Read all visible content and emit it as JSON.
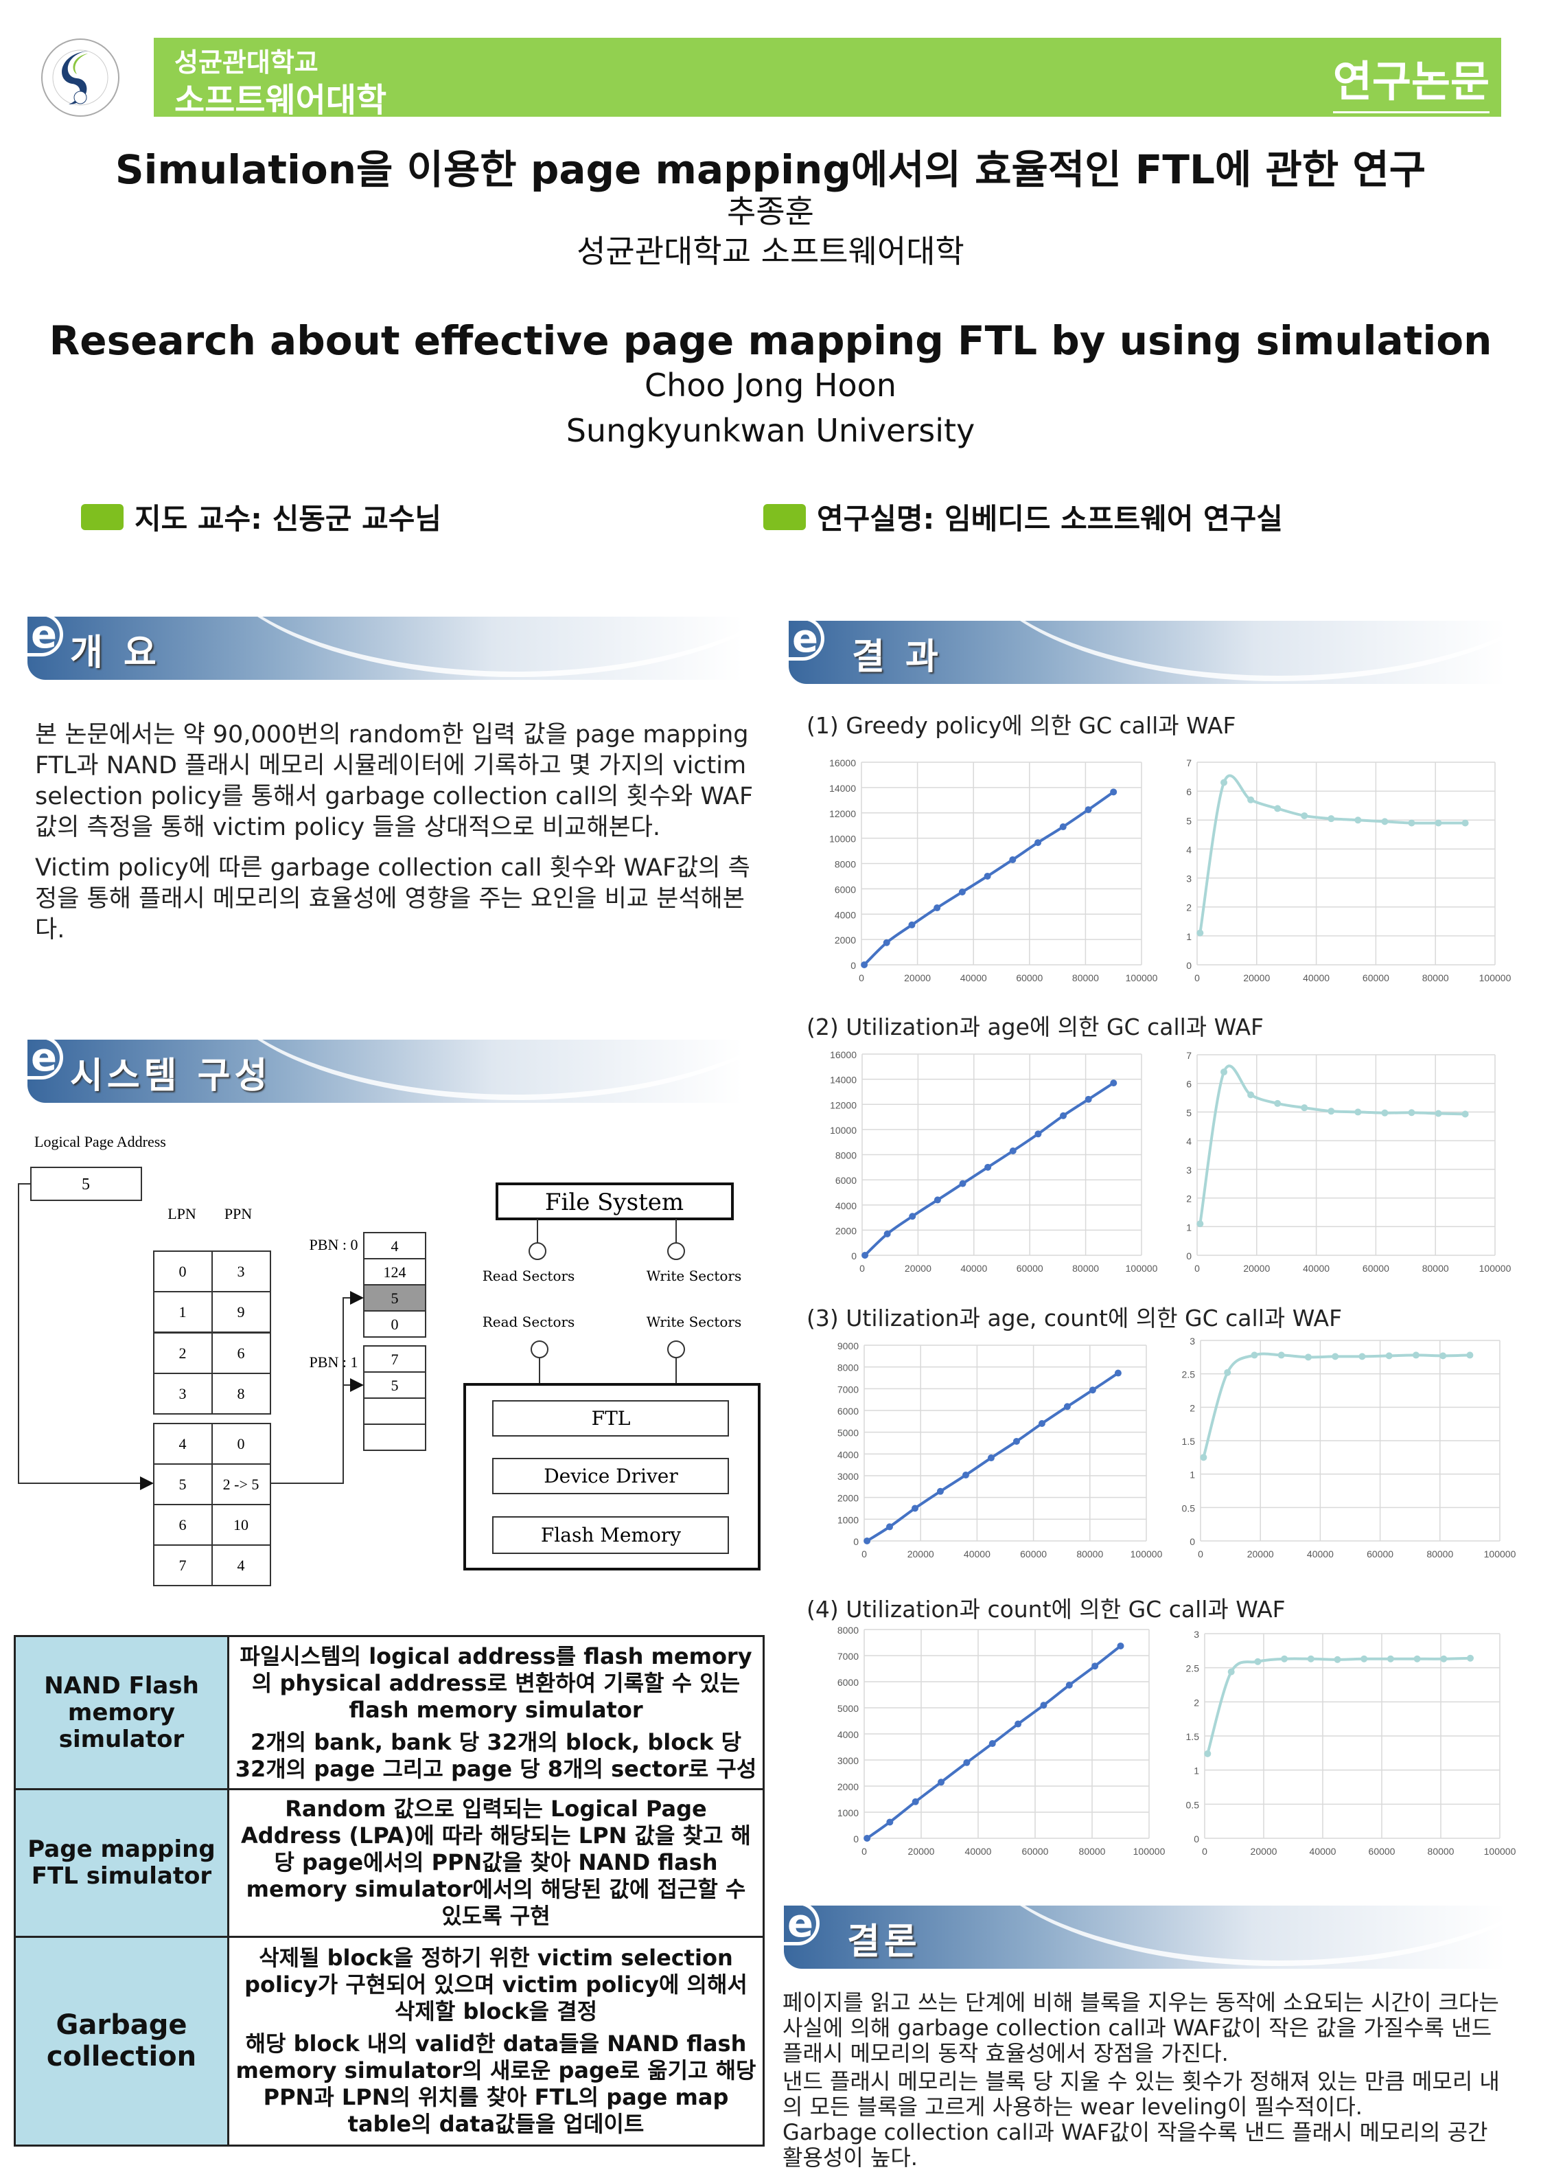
{
  "header": {
    "university": "성균관대학교",
    "college": "소프트웨어대학",
    "category": "연구논문",
    "logo_text": "SUNGKYUNKWAN UNIVERSITY 1398 성균관대학교",
    "brand_color": "#92d050"
  },
  "title": {
    "korean": "Simulation을 이용한 page mapping에서의 효율적인 FTL에 관한 연구",
    "author_ko": "추종훈",
    "affiliation_ko": "성균관대학교 소프트웨어대학",
    "english": "Research about effective page mapping FTL by using simulation",
    "author_en": "Choo Jong Hoon",
    "affiliation_en": "Sungkyunkwan University"
  },
  "labels": {
    "advisor": "지도 교수:  신동군 교수님",
    "lab": "연구실명: 임베디드 소프트웨어 연구실"
  },
  "sections": {
    "overview": "개 요",
    "system": "시스템 구성",
    "results": "결 과",
    "conclusion": "결론"
  },
  "overview": {
    "p1": "본 논문에서는 약 90,000번의 random한 입력 값을 page mapping FTL과 NAND 플래시 메모리 시뮬레이터에 기록하고 몇 가지의 victim selection policy를 통해서 garbage collection call의 횟수와 WAF값의 측정을 통해 victim policy 들을 상대적으로 비교해본다.",
    "p2": "Victim policy에 따른 garbage collection call 횟수와 WAF값의 측정을 통해 플래시 메모리의 효율성에 영향을 주는 요인을 비교 분석해본다."
  },
  "diagram": {
    "lpa_label": "Logical Page Address",
    "lpa_value": "5",
    "lpn_header": "LPN",
    "ppn_header": "PPN",
    "map_rows": [
      [
        "0",
        "3"
      ],
      [
        "1",
        "9"
      ],
      [
        "2",
        "6"
      ],
      [
        "3",
        "8"
      ],
      [
        "4",
        "0"
      ],
      [
        "5",
        "2 -> 5"
      ],
      [
        "6",
        "10"
      ],
      [
        "7",
        "4"
      ]
    ],
    "pbn0_label": "PBN : 0",
    "pbn0_pages": [
      "4",
      "124",
      "5",
      "0"
    ],
    "pbn1_label": "PBN : 1",
    "pbn1_pages": [
      "7",
      "5",
      "",
      ""
    ],
    "file_system": "File System",
    "read_sectors": "Read Sectors",
    "write_sectors": "Write Sectors",
    "ftl": "FTL",
    "device_driver": "Device Driver",
    "flash_memory": "Flash Memory"
  },
  "info_table": [
    {
      "name": "NAND Flash memory simulator",
      "desc": [
        "파일시스템의 logical address를 flash memory의 physical address로 변환하여 기록할 수 있는 flash memory simulator",
        "2개의 bank, bank 당 32개의 block, block 당 32개의 page 그리고 page 당 8개의 sector로 구성"
      ]
    },
    {
      "name": "Page mapping FTL simulator",
      "desc": [
        "Random 값으로 입력되는 Logical Page Address (LPA)에 따라 해당되는 LPN 값을 찾고 해당 page에서의 PPN값을 찾아 NAND flash memory simulator에서의 해당된 값에 접근할 수 있도록 구현"
      ]
    },
    {
      "name": "Garbage collection",
      "desc": [
        "삭제될 block을 정하기 위한 victim selection policy가 구현되어 있으며 victim policy에 의해서 삭제할 block을 결정",
        "해당 block 내의 valid한 data들을 NAND flash memory simulator의 새로운 page로 옮기고 해당 PPN과 LPN의 위치를 찾아 FTL의 page map table의 data값들을 업데이트"
      ]
    }
  ],
  "results": {
    "labels": [
      "(1) Greedy policy에 의한 GC call과 WAF",
      "(2)  Utilization과 age에 의한 GC call과 WAF",
      "(3) Utilization과 age, count에 의한 GC call과 WAF",
      "(4) Utilization과 count에 의한 GC call과 WAF"
    ]
  },
  "conclusion": {
    "p1": "페이지를 읽고 쓰는 단계에 비해 블록을 지우는 동작에 소요되는 시간이 크다는 사실에 의해 garbage collection call과 WAF값이 작은 값을 가질수록 낸드 플래시 메모리의 동작 효율성에서 장점을 가진다.",
    "p2": "낸드 플래시 메모리는 블록 당 지울 수 있는 횟수가 정해져 있는 만큼 메모리 내의 모든 블록을 고르게 사용하는 wear leveling이 필수적이다.",
    "p3": "Garbage collection call과 WAF값이 작을수록 낸드 플래시 메모리의 공간 활용성이 높다."
  },
  "chart_data": [
    {
      "type": "line",
      "group": 1,
      "color": "#4472c4",
      "x": [
        1000,
        9000,
        18000,
        27000,
        36000,
        45000,
        54000,
        63000,
        72000,
        81000,
        90000
      ],
      "values": [
        0,
        1750,
        3150,
        4500,
        5750,
        7000,
        8300,
        9650,
        10900,
        12250,
        13650
      ],
      "xlim": [
        0,
        100000
      ],
      "ylim": [
        0,
        16000
      ],
      "xticks": [
        0,
        20000,
        40000,
        60000,
        80000,
        100000
      ],
      "yticks": [
        0,
        2000,
        4000,
        6000,
        8000,
        10000,
        12000,
        14000,
        16000
      ],
      "grid": true
    },
    {
      "type": "line",
      "group": 1,
      "color": "#a9d6d6",
      "x": [
        1000,
        9000,
        18000,
        27000,
        36000,
        45000,
        54000,
        63000,
        72000,
        81000,
        90000
      ],
      "values": [
        1.1,
        6.3,
        5.7,
        5.4,
        5.15,
        5.05,
        5.0,
        4.95,
        4.9,
        4.9,
        4.9
      ],
      "xlim": [
        0,
        100000
      ],
      "ylim": [
        0,
        7
      ],
      "xticks": [
        0,
        20000,
        40000,
        60000,
        80000,
        100000
      ],
      "yticks": [
        0,
        1,
        2,
        3,
        4,
        5,
        6,
        7
      ],
      "grid": true
    },
    {
      "type": "line",
      "group": 2,
      "color": "#4472c4",
      "x": [
        1000,
        9000,
        18000,
        27000,
        36000,
        45000,
        54000,
        63000,
        72000,
        81000,
        90000
      ],
      "values": [
        0,
        1700,
        3100,
        4400,
        5700,
        7000,
        8300,
        9650,
        11100,
        12400,
        13700
      ],
      "xlim": [
        0,
        100000
      ],
      "ylim": [
        0,
        16000
      ],
      "xticks": [
        0,
        20000,
        40000,
        60000,
        80000,
        100000
      ],
      "yticks": [
        0,
        2000,
        4000,
        6000,
        8000,
        10000,
        12000,
        14000,
        16000
      ],
      "grid": true
    },
    {
      "type": "line",
      "group": 2,
      "color": "#a9d6d6",
      "x": [
        1000,
        9000,
        18000,
        27000,
        36000,
        45000,
        54000,
        63000,
        72000,
        81000,
        90000
      ],
      "values": [
        1.1,
        6.4,
        5.6,
        5.3,
        5.15,
        5.03,
        5.0,
        4.97,
        4.98,
        4.95,
        4.93
      ],
      "xlim": [
        0,
        100000
      ],
      "ylim": [
        0,
        7
      ],
      "xticks": [
        0,
        20000,
        40000,
        60000,
        80000,
        100000
      ],
      "yticks": [
        0,
        1,
        2,
        3,
        4,
        5,
        6,
        7
      ],
      "grid": true
    },
    {
      "type": "line",
      "group": 3,
      "color": "#4472c4",
      "x": [
        1000,
        9000,
        18000,
        27000,
        36000,
        45000,
        54000,
        63000,
        72000,
        81000,
        90000
      ],
      "values": [
        0,
        650,
        1500,
        2280,
        3030,
        3820,
        4580,
        5400,
        6180,
        6940,
        7720
      ],
      "xlim": [
        0,
        100000
      ],
      "ylim": [
        0,
        9000
      ],
      "xticks": [
        0,
        20000,
        40000,
        60000,
        80000,
        100000
      ],
      "yticks": [
        0,
        1000,
        2000,
        3000,
        4000,
        5000,
        6000,
        7000,
        8000,
        9000
      ],
      "grid": true
    },
    {
      "type": "line",
      "group": 3,
      "color": "#a9d6d6",
      "x": [
        1000,
        9000,
        18000,
        27000,
        36000,
        45000,
        54000,
        63000,
        72000,
        81000,
        90000
      ],
      "values": [
        1.25,
        2.52,
        2.78,
        2.78,
        2.75,
        2.76,
        2.76,
        2.77,
        2.78,
        2.77,
        2.78
      ],
      "xlim": [
        0,
        100000
      ],
      "ylim": [
        0,
        3
      ],
      "xticks": [
        0,
        20000,
        40000,
        60000,
        80000,
        100000
      ],
      "yticks": [
        0,
        0.5,
        1,
        1.5,
        2,
        2.5,
        3
      ],
      "grid": true
    },
    {
      "type": "line",
      "group": 4,
      "color": "#4472c4",
      "x": [
        1000,
        9000,
        18000,
        27000,
        36000,
        45000,
        54000,
        63000,
        72000,
        81000,
        90000
      ],
      "values": [
        0,
        620,
        1400,
        2150,
        2900,
        3630,
        4380,
        5100,
        5870,
        6600,
        7370
      ],
      "xlim": [
        0,
        100000
      ],
      "ylim": [
        0,
        8000
      ],
      "xticks": [
        0,
        20000,
        40000,
        60000,
        80000,
        100000
      ],
      "yticks": [
        0,
        1000,
        2000,
        3000,
        4000,
        5000,
        6000,
        7000,
        8000
      ],
      "grid": true
    },
    {
      "type": "line",
      "group": 4,
      "color": "#a9d6d6",
      "x": [
        1000,
        9000,
        18000,
        27000,
        36000,
        45000,
        54000,
        63000,
        72000,
        81000,
        90000
      ],
      "values": [
        1.24,
        2.44,
        2.59,
        2.63,
        2.63,
        2.62,
        2.63,
        2.63,
        2.63,
        2.63,
        2.64
      ],
      "xlim": [
        0,
        100000
      ],
      "ylim": [
        0,
        3
      ],
      "xticks": [
        0,
        20000,
        40000,
        60000,
        80000,
        100000
      ],
      "yticks": [
        0,
        0.5,
        1,
        1.5,
        2,
        2.5,
        3
      ],
      "grid": true
    }
  ]
}
